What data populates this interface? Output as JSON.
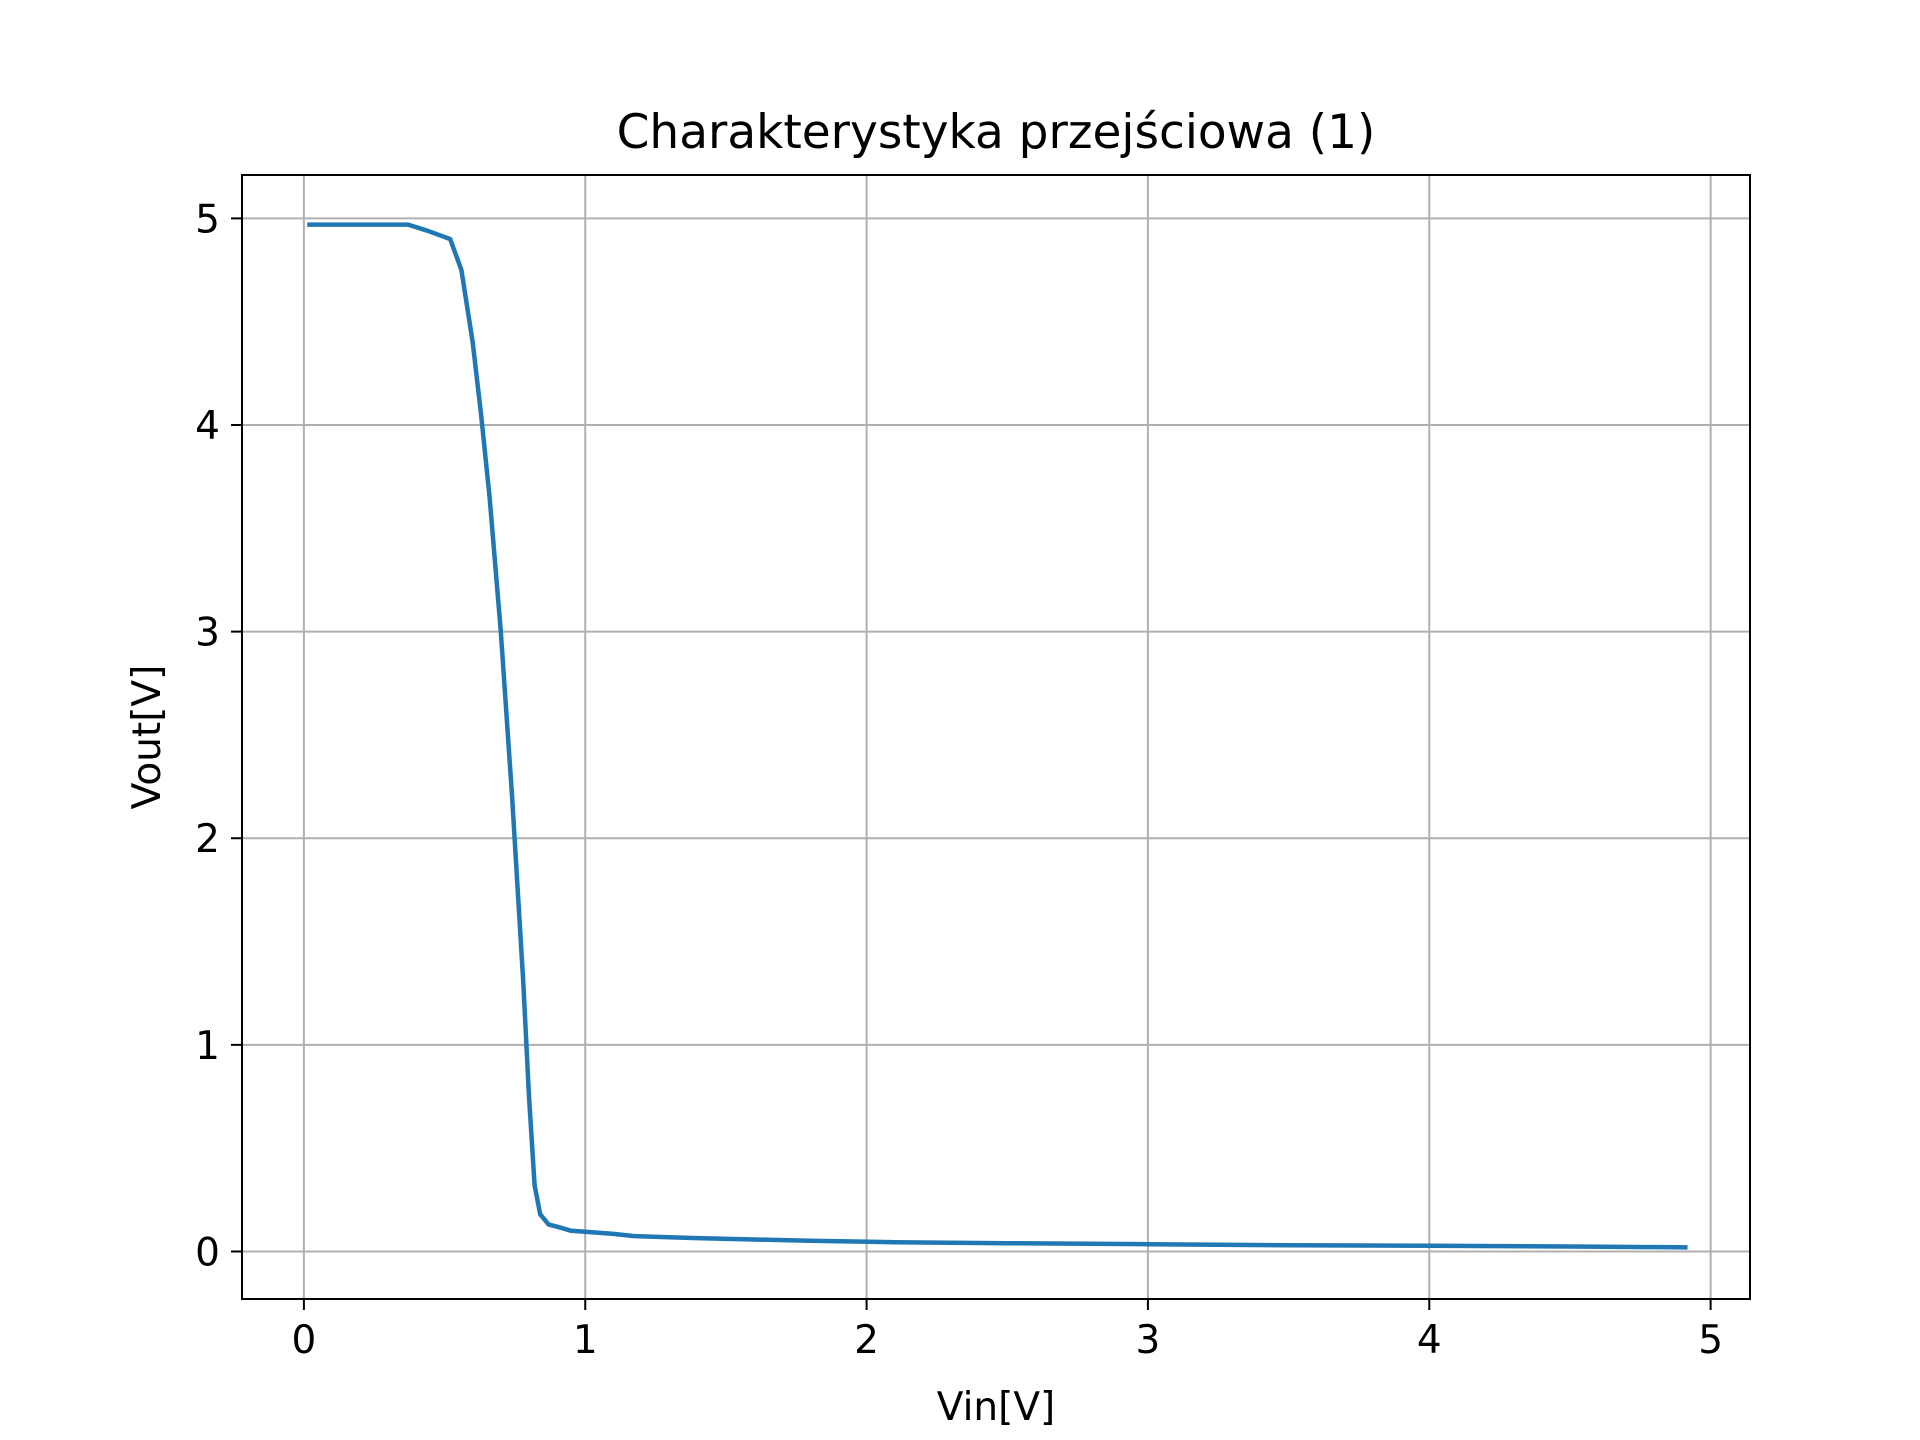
{
  "chart_data": {
    "type": "line",
    "title": "Charakterystyka przejściowa (1)",
    "xlabel": "Vin[V]",
    "ylabel": "Vout[V]",
    "xlim": [
      -0.22,
      5.14
    ],
    "ylim": [
      -0.23,
      5.21
    ],
    "grid": true,
    "x_ticks": [
      0,
      1,
      2,
      3,
      4,
      5
    ],
    "y_ticks": [
      0,
      1,
      2,
      3,
      4,
      5
    ],
    "series": [
      {
        "color": "#1f77b4",
        "x": [
          0.02,
          0.1,
          0.2,
          0.3,
          0.37,
          0.44,
          0.52,
          0.56,
          0.6,
          0.63,
          0.66,
          0.7,
          0.74,
          0.78,
          0.8,
          0.82,
          0.84,
          0.87,
          0.9,
          0.95,
          1.0,
          1.1,
          1.17,
          1.38,
          1.6,
          1.8,
          2.1,
          2.5,
          3.0,
          3.5,
          4.0,
          4.5,
          4.91
        ],
        "y": [
          4.97,
          4.97,
          4.97,
          4.97,
          4.97,
          4.94,
          4.9,
          4.75,
          4.4,
          4.05,
          3.65,
          3.0,
          2.2,
          1.3,
          0.75,
          0.32,
          0.18,
          0.13,
          0.12,
          0.1,
          0.095,
          0.085,
          0.075,
          0.065,
          0.058,
          0.052,
          0.045,
          0.04,
          0.035,
          0.03,
          0.028,
          0.024,
          0.02
        ]
      }
    ]
  }
}
